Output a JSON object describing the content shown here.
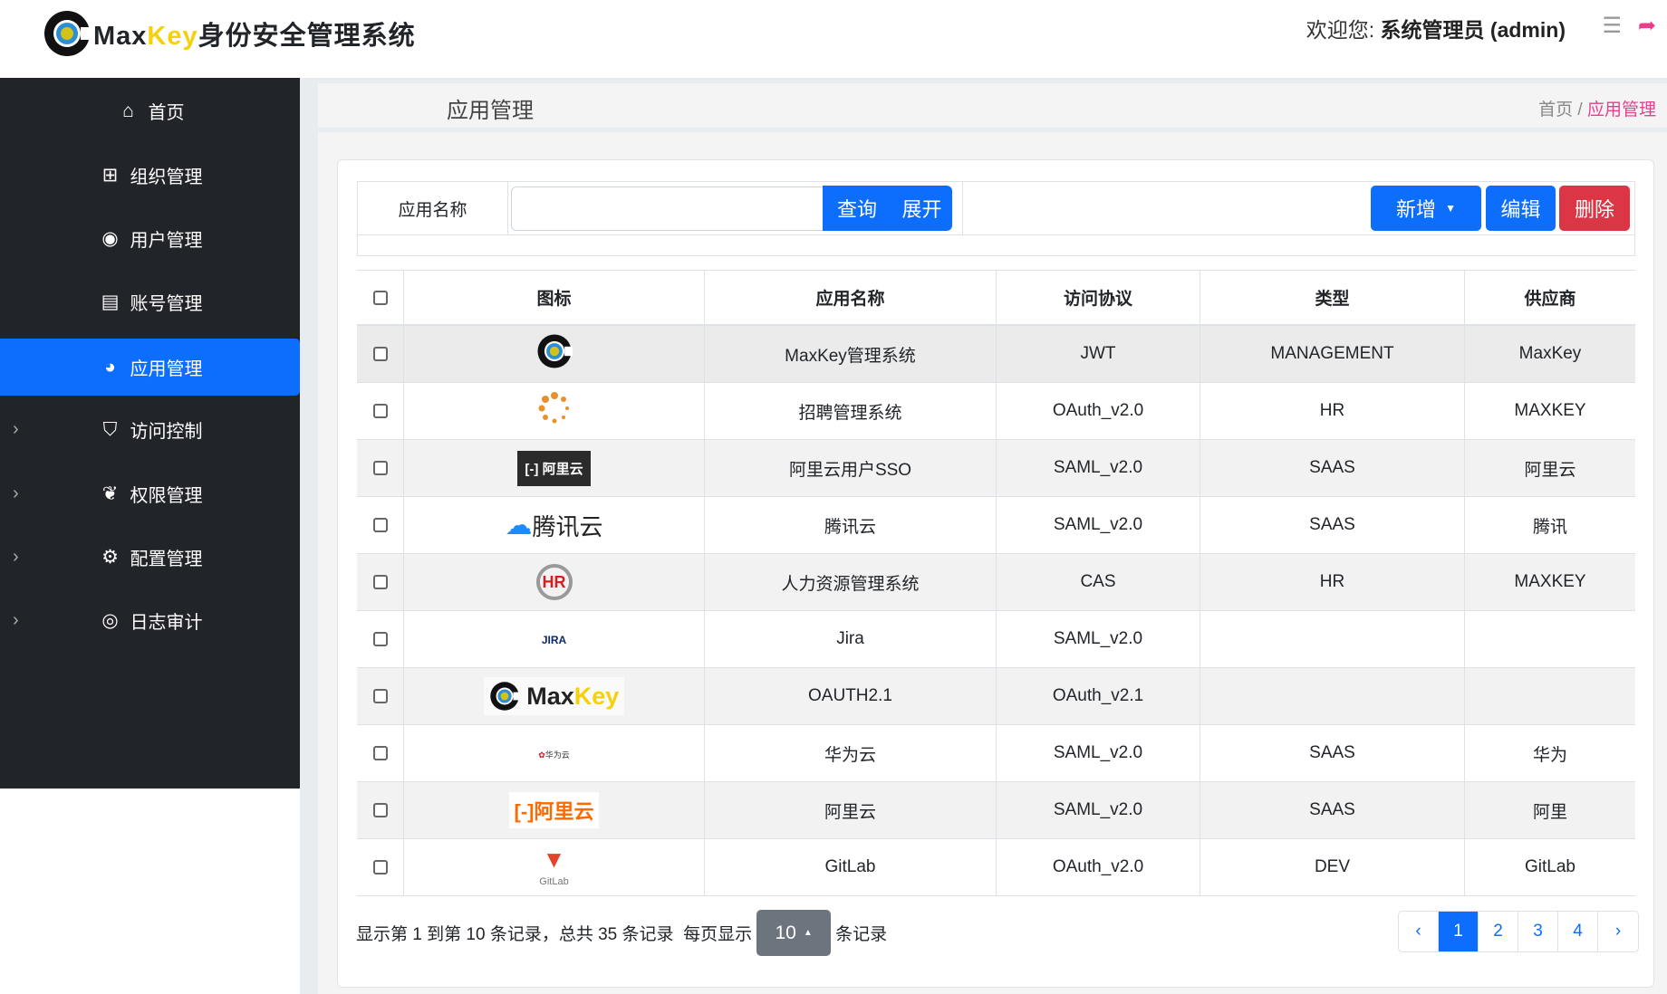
{
  "header": {
    "logo_text_1": "Max",
    "logo_text_2": "Key",
    "logo_text_3": "身份安全管理系统",
    "welcome_label": "欢迎您:",
    "user": "系统管理员 (admin)"
  },
  "sidebar": {
    "items": [
      {
        "label": "首页",
        "icon": "home-icon"
      },
      {
        "label": "组织管理",
        "icon": "sitemap-icon"
      },
      {
        "label": "用户管理",
        "icon": "user-circle-icon"
      },
      {
        "label": "账号管理",
        "icon": "id-card-icon"
      },
      {
        "label": "应用管理",
        "icon": "globe-icon",
        "active": true
      },
      {
        "label": "访问控制",
        "icon": "shield-icon"
      },
      {
        "label": "权限管理",
        "icon": "leaf-icon"
      },
      {
        "label": "配置管理",
        "icon": "cogs-icon"
      },
      {
        "label": "日志审计",
        "icon": "eye-icon"
      }
    ]
  },
  "page": {
    "title": "应用管理",
    "breadcrumb": {
      "home": "首页",
      "sep": "/",
      "current": "应用管理"
    }
  },
  "search": {
    "label": "应用名称",
    "value": "",
    "query": "查询",
    "expand": "展开",
    "add": "新增",
    "edit": "编辑",
    "delete": "删除"
  },
  "table": {
    "headers": [
      "图标",
      "应用名称",
      "访问协议",
      "类型",
      "供应商"
    ],
    "rows": [
      {
        "icon": "maxkey-logo",
        "name": "MaxKey管理系统",
        "protocol": "JWT",
        "type": "MANAGEMENT",
        "vendor": "MaxKey"
      },
      {
        "icon": "loading-dots-logo",
        "name": "招聘管理系统",
        "protocol": "OAuth_v2.0",
        "type": "HR",
        "vendor": "MAXKEY"
      },
      {
        "icon": "aliyun-dark-logo",
        "name": "阿里云用户SSO",
        "protocol": "SAML_v2.0",
        "type": "SAAS",
        "vendor": "阿里云"
      },
      {
        "icon": "tencent-cloud-logo",
        "name": "腾讯云",
        "protocol": "SAML_v2.0",
        "type": "SAAS",
        "vendor": "腾讯"
      },
      {
        "icon": "hr-logo",
        "name": "人力资源管理系统",
        "protocol": "CAS",
        "type": "HR",
        "vendor": "MAXKEY"
      },
      {
        "icon": "jira-logo",
        "name": "Jira",
        "protocol": "SAML_v2.0",
        "type": "",
        "vendor": ""
      },
      {
        "icon": "maxkey-wide-logo",
        "name": "OAUTH2.1",
        "protocol": "OAuth_v2.1",
        "type": "",
        "vendor": ""
      },
      {
        "icon": "huawei-cloud-logo",
        "name": "华为云",
        "protocol": "SAML_v2.0",
        "type": "SAAS",
        "vendor": "华为"
      },
      {
        "icon": "aliyun-orange-logo",
        "name": "阿里云",
        "protocol": "SAML_v2.0",
        "type": "SAAS",
        "vendor": "阿里"
      },
      {
        "icon": "gitlab-logo",
        "name": "GitLab",
        "protocol": "OAuth_v2.0",
        "type": "DEV",
        "vendor": "GitLab"
      }
    ]
  },
  "logo_text": {
    "aliyun": "阿里云",
    "tencent": "腾讯云",
    "jira": "JIRA",
    "maxkey_1": "Max",
    "maxkey_2": "Key",
    "huawei": "华为云",
    "gitlab": "GitLab"
  },
  "footer": {
    "summary": "显示第 1 到第 10 条记录，总共 35 条记录",
    "per_page_pre": "每页显示",
    "page_size": "10",
    "per_page_post": "条记录"
  },
  "pagination": {
    "prev": "‹",
    "pages": [
      "1",
      "2",
      "3",
      "4"
    ],
    "current": "1",
    "next": "›"
  },
  "colors": {
    "primary": "#0d6efd",
    "danger": "#dc3545",
    "sidebar": "#212529",
    "accent": "#e83e8c"
  }
}
